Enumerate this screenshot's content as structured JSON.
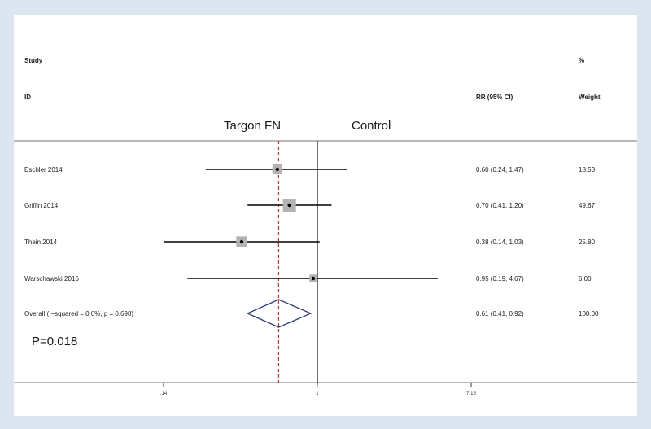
{
  "header": {
    "col_study": "Study",
    "col_id": "ID",
    "col_rr": "RR (95% CI)",
    "col_pct": "%",
    "col_weight": "Weight",
    "favours_left": "Targon FN",
    "favours_right": "Control"
  },
  "p_value_label": "P=0.018",
  "chart_data": {
    "type": "forest",
    "scale": "log",
    "x_ticks": [
      0.14,
      1,
      7.15
    ],
    "x_tick_labels": [
      ".14",
      "1",
      "7.15"
    ],
    "null_line": 1,
    "overall_line": 0.61,
    "studies": [
      {
        "label": "Eschler 2014",
        "rr": 0.6,
        "lo": 0.24,
        "hi": 1.47,
        "weight": 18.53,
        "text": "0.60 (0.24, 1.47)",
        "weight_text": "18.53"
      },
      {
        "label": "Griffin 2014",
        "rr": 0.7,
        "lo": 0.41,
        "hi": 1.2,
        "weight": 49.67,
        "text": "0.70 (0.41, 1.20)",
        "weight_text": "49.67"
      },
      {
        "label": "Thein 2014",
        "rr": 0.38,
        "lo": 0.14,
        "hi": 1.03,
        "weight": 25.8,
        "text": "0.38 (0.14, 1.03)",
        "weight_text": "25.80"
      },
      {
        "label": "Warschawski 2016",
        "rr": 0.95,
        "lo": 0.19,
        "hi": 4.67,
        "weight": 6.0,
        "text": "0.95 (0.19, 4.67)",
        "weight_text": "6.00"
      }
    ],
    "overall": {
      "label": "Overall  (I−squared = 0.0%, p = 0.698)",
      "rr": 0.61,
      "lo": 0.41,
      "hi": 0.92,
      "text": "0.61 (0.41, 0.92)",
      "weight_text": "100.00"
    }
  },
  "colors": {
    "background": "#dce6f0",
    "weight_box": "#b3b3b3",
    "diamond": "#2e3a7a",
    "overall_line": "#c0392b",
    "axis": "#000000"
  }
}
